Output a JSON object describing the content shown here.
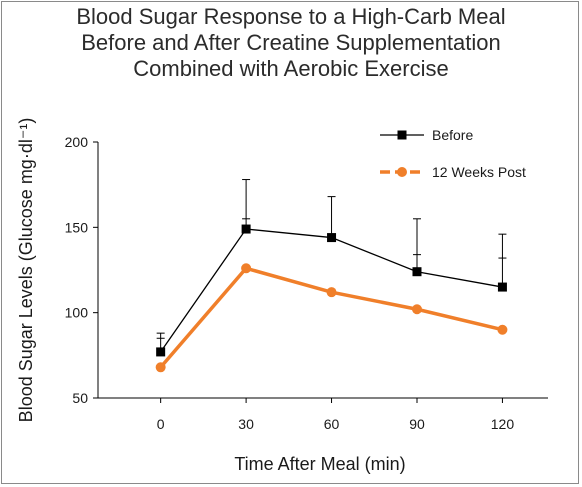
{
  "chart_data": {
    "type": "line",
    "title": [
      "Blood Sugar Response to a High-Carb Meal",
      "Before and After Creatine Supplementation",
      "Combined with Aerobic Exercise"
    ],
    "xlabel": "Time After Meal (min)",
    "ylabel": "Blood Sugar Levels (Glucose mg·dl⁻¹)",
    "categories": [
      "0",
      "30",
      "60",
      "90",
      "120"
    ],
    "x": [
      0,
      30,
      60,
      90,
      120
    ],
    "ylim": [
      50,
      200
    ],
    "yticks": [
      "50",
      "100",
      "150",
      "200"
    ],
    "grid": false,
    "legend_position": "top-right",
    "series": [
      {
        "name": "Before",
        "color": "#000000",
        "marker": "square",
        "values": [
          77,
          149,
          144,
          124,
          115
        ],
        "error_upper": [
          88,
          178,
          168,
          155,
          146
        ],
        "error_mid": [
          85,
          155,
          null,
          134,
          132
        ]
      },
      {
        "name": "12 Weeks Post",
        "color": "#f07f2a",
        "marker": "circle",
        "linestyle": "dashed-legend",
        "values": [
          68,
          126,
          112,
          102,
          90
        ]
      }
    ]
  }
}
